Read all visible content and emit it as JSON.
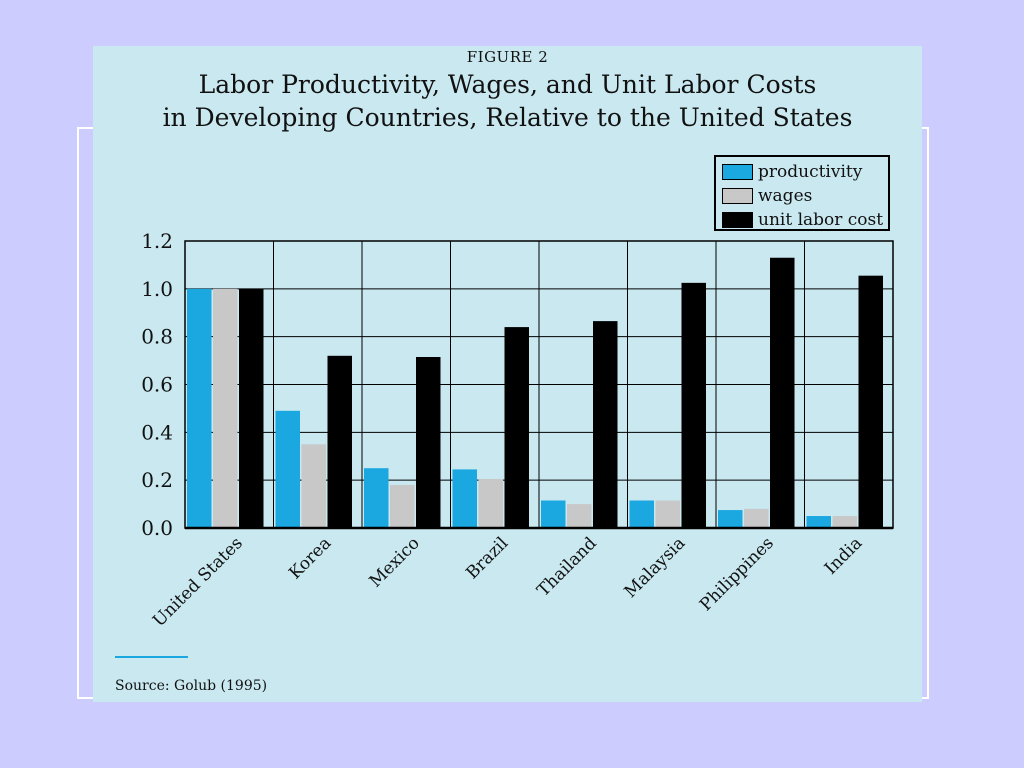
{
  "figure_label": "FIGURE 2",
  "title_line1": "Labor Productivity, Wages, and Unit Labor Costs",
  "title_line2": "in Developing Countries, Relative to the United States",
  "source": "Source: Golub (1995)",
  "colors": {
    "background": "#CCCCFF",
    "panel": "#C9E8F0",
    "productivity": "#1BA8E0",
    "wages": "#C8C8C8",
    "unit_labor_cost": "#000000"
  },
  "chart_data": {
    "type": "bar",
    "title": "Labor Productivity, Wages, and Unit Labor Costs in Developing Countries, Relative to the United States",
    "xlabel": "",
    "ylabel": "",
    "ylim": [
      0,
      1.2
    ],
    "yticks": [
      "0.0",
      "0.2",
      "0.4",
      "0.6",
      "0.8",
      "1.0",
      "1.2"
    ],
    "grid": true,
    "legend_position": "top-right",
    "categories": [
      "United States",
      "Korea",
      "Mexico",
      "Brazil",
      "Thailand",
      "Malaysia",
      "Philippines",
      "India"
    ],
    "series": [
      {
        "name": "productivity",
        "color": "#1BA8E0",
        "values": [
          1.0,
          0.49,
          0.25,
          0.245,
          0.115,
          0.115,
          0.075,
          0.05
        ]
      },
      {
        "name": "wages",
        "color": "#C8C8C8",
        "values": [
          1.0,
          0.35,
          0.18,
          0.205,
          0.1,
          0.115,
          0.08,
          0.05
        ]
      },
      {
        "name": "unit labor cost",
        "color": "#000000",
        "values": [
          1.0,
          0.72,
          0.715,
          0.84,
          0.865,
          1.025,
          1.13,
          1.055
        ]
      }
    ]
  }
}
